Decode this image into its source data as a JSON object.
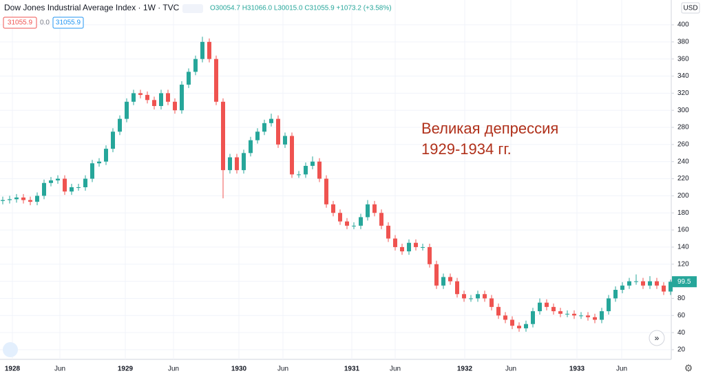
{
  "header": {
    "symbol": "Dow Jones Industrial Average Index · 1W · TVC",
    "ohlc": "O30054.7 H31066.0 L30015.0 C31055.9 +1073.2 (+3.58%)",
    "box1": "31055.9",
    "box2": "0.0",
    "box3": "31055.9",
    "currency": "USD"
  },
  "chart_data": {
    "type": "candlestick",
    "annotation": [
      "Великая депрессия",
      "1929-1934 гг."
    ],
    "up_color": "#26a69a",
    "down_color": "#ef5350",
    "grid": true,
    "ylim": [
      8.7,
      429
    ],
    "yticks": [
      20,
      40,
      60,
      80,
      100,
      120,
      140,
      160,
      180,
      200,
      220,
      240,
      260,
      280,
      300,
      320,
      340,
      360,
      380,
      400
    ],
    "xtick_labels": [
      "1928",
      "Jun",
      "1929",
      "Jun",
      "1930",
      "Jun",
      "1931",
      "Jun",
      "1932",
      "Jun",
      "1933",
      "Jun"
    ],
    "open": [
      194,
      195,
      196,
      198,
      195,
      193,
      200,
      215,
      218,
      220,
      205,
      210,
      210,
      220,
      238,
      240,
      255,
      275,
      290,
      310,
      320,
      318,
      312,
      305,
      320,
      310,
      300,
      330,
      345,
      360,
      380,
      360,
      310,
      230,
      245,
      230,
      250,
      265,
      275,
      285,
      290,
      260,
      270,
      225,
      225,
      235,
      240,
      220,
      190,
      180,
      170,
      165,
      165,
      175,
      190,
      180,
      165,
      150,
      140,
      135,
      145,
      140,
      140,
      120,
      95,
      105,
      100,
      85,
      80,
      80,
      85,
      80,
      70,
      60,
      55,
      48,
      45,
      50,
      65,
      75,
      70,
      65,
      62,
      62,
      60,
      60,
      58,
      55,
      65,
      80,
      90,
      95,
      100,
      100,
      95,
      100,
      95,
      88
    ],
    "high": [
      199,
      200,
      202,
      202,
      199,
      204,
      219,
      222,
      224,
      224,
      214,
      214,
      224,
      242,
      244,
      259,
      279,
      294,
      314,
      324,
      324,
      322,
      316,
      324,
      324,
      314,
      334,
      349,
      364,
      386,
      384,
      364,
      314,
      249,
      249,
      254,
      269,
      279,
      289,
      296,
      294,
      274,
      274,
      229,
      239,
      246,
      244,
      224,
      194,
      184,
      174,
      169,
      179,
      195,
      194,
      184,
      169,
      154,
      144,
      149,
      149,
      144,
      144,
      124,
      109,
      109,
      104,
      89,
      84,
      89,
      89,
      84,
      74,
      64,
      59,
      52,
      54,
      69,
      80,
      79,
      74,
      69,
      66,
      66,
      64,
      64,
      62,
      69,
      84,
      94,
      99,
      104,
      108,
      104,
      106,
      104,
      99,
      102
    ],
    "low": [
      190,
      191,
      192,
      191,
      189,
      189,
      196,
      211,
      214,
      201,
      201,
      206,
      206,
      216,
      234,
      236,
      251,
      271,
      286,
      306,
      314,
      308,
      301,
      301,
      306,
      296,
      296,
      326,
      341,
      356,
      356,
      306,
      197,
      226,
      226,
      226,
      246,
      261,
      271,
      281,
      256,
      256,
      221,
      221,
      221,
      231,
      216,
      186,
      176,
      166,
      161,
      161,
      161,
      171,
      176,
      161,
      146,
      136,
      131,
      131,
      136,
      136,
      116,
      91,
      91,
      96,
      81,
      76,
      76,
      76,
      76,
      66,
      56,
      51,
      44,
      41,
      41,
      46,
      61,
      66,
      61,
      58,
      58,
      56,
      56,
      54,
      51,
      51,
      61,
      76,
      86,
      91,
      96,
      91,
      91,
      91,
      84,
      84
    ],
    "close": [
      195,
      196,
      198,
      195,
      193,
      200,
      215,
      218,
      220,
      205,
      210,
      210,
      220,
      238,
      240,
      255,
      275,
      290,
      310,
      320,
      318,
      312,
      305,
      320,
      310,
      300,
      330,
      345,
      360,
      380,
      360,
      310,
      230,
      245,
      230,
      250,
      265,
      275,
      285,
      290,
      260,
      270,
      225,
      225,
      235,
      240,
      220,
      190,
      180,
      170,
      165,
      165,
      175,
      190,
      180,
      165,
      150,
      140,
      135,
      145,
      140,
      140,
      120,
      95,
      105,
      100,
      85,
      80,
      80,
      85,
      80,
      70,
      60,
      55,
      48,
      45,
      50,
      65,
      75,
      70,
      65,
      62,
      62,
      60,
      60,
      58,
      55,
      65,
      80,
      90,
      95,
      100,
      100,
      95,
      100,
      95,
      88,
      99.5
    ]
  }
}
